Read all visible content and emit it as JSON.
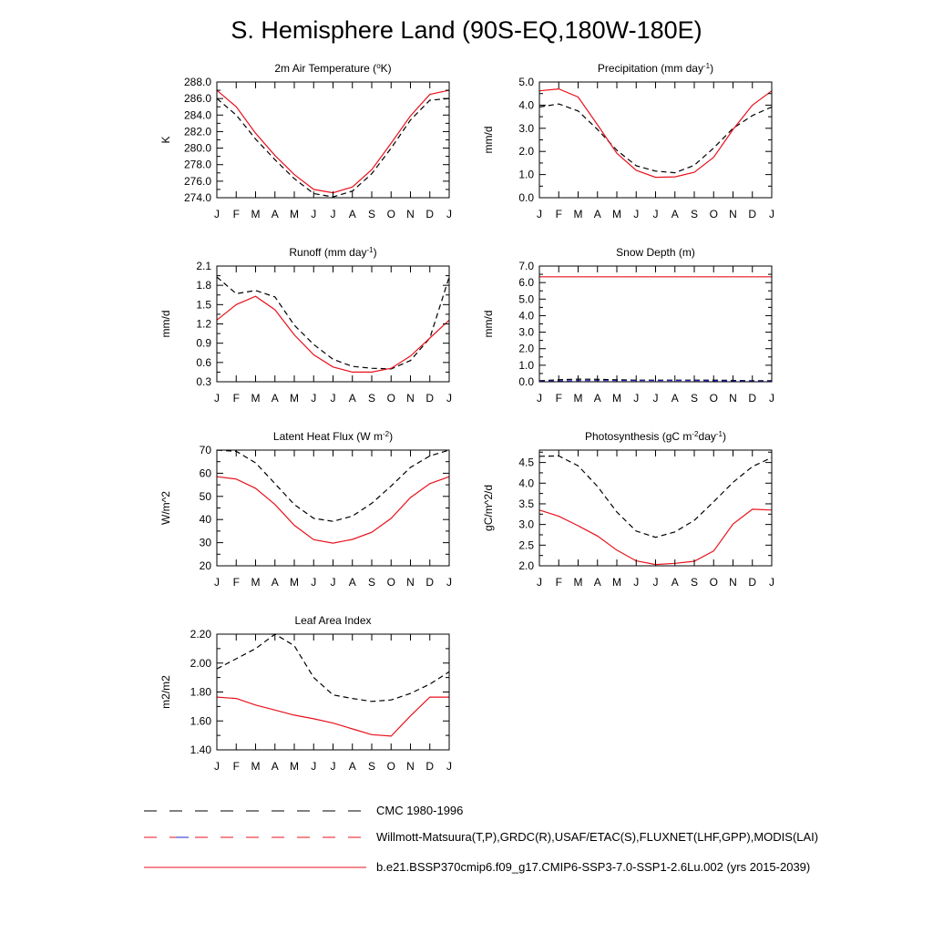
{
  "figure_title": "S. Hemisphere Land (90S-EQ,180W-180E)",
  "colors": {
    "model": "#e8111c",
    "obs": "#000000",
    "obs_alt": "#2222cc"
  },
  "legend": {
    "cmc": "CMC 1980-1996",
    "obs": "Willmott-Matsuura(T,P),GRDC(R),USAF/ETAC(S),FLUXNET(LHF,GPP),MODIS(LAI)",
    "model": "b.e21.BSSP370cmip6.f09_g17.CMIP6-SSP3-7.0-SSP1-2.6Lu.002 (yrs 2015-2039)"
  },
  "chart_data": [
    {
      "type": "line",
      "title": "2m Air Temperature (°K)",
      "title_html": "2m Air Temperature (<tspan baseline-shift=\"super\" font-size=\"8\">o</tspan>K)",
      "ylabel": "K",
      "months": [
        "J",
        "F",
        "M",
        "A",
        "M",
        "J",
        "J",
        "A",
        "S",
        "O",
        "N",
        "D",
        "J"
      ],
      "ylim": [
        274.0,
        288.0
      ],
      "yticks": [
        "274.0",
        "276.0",
        "278.0",
        "280.0",
        "282.0",
        "284.0",
        "286.0",
        "288.0"
      ],
      "ytick_values": [
        274,
        276,
        278,
        280,
        282,
        284,
        286,
        288
      ],
      "series": [
        {
          "key": "obs",
          "values": [
            286.0,
            284.0,
            281.1,
            278.6,
            276.3,
            274.5,
            274.1,
            274.8,
            276.9,
            280.0,
            283.4,
            285.8,
            286.0
          ]
        },
        {
          "key": "model",
          "values": [
            287.0,
            285.0,
            281.8,
            279.1,
            276.8,
            275.0,
            274.6,
            275.3,
            277.4,
            280.6,
            283.9,
            286.5,
            287.0
          ]
        }
      ]
    },
    {
      "type": "line",
      "title": "Precipitation (mm day-1)",
      "title_html": "Precipitation (mm day<tspan baseline-shift=\"super\" font-size=\"8\">-1</tspan>)",
      "ylabel": "mm/d",
      "months": [
        "J",
        "F",
        "M",
        "A",
        "M",
        "J",
        "J",
        "A",
        "S",
        "O",
        "N",
        "D",
        "J"
      ],
      "ylim": [
        0.0,
        5.0
      ],
      "yticks": [
        "0.0",
        "1.0",
        "2.0",
        "3.0",
        "4.0",
        "5.0"
      ],
      "ytick_values": [
        0,
        1,
        2,
        3,
        4,
        5
      ],
      "series": [
        {
          "key": "obs",
          "values": [
            3.92,
            4.05,
            3.75,
            2.95,
            2.05,
            1.38,
            1.15,
            1.08,
            1.4,
            2.15,
            3.0,
            3.55,
            3.92
          ]
        },
        {
          "key": "model",
          "values": [
            4.62,
            4.7,
            4.35,
            3.15,
            1.92,
            1.18,
            0.88,
            0.9,
            1.1,
            1.75,
            2.95,
            4.0,
            4.62
          ]
        }
      ]
    },
    {
      "type": "line",
      "title": "Runoff (mm day-1)",
      "title_html": "Runoff (mm day<tspan baseline-shift=\"super\" font-size=\"8\">-1</tspan>)",
      "ylabel": "mm/d",
      "months": [
        "J",
        "F",
        "M",
        "A",
        "M",
        "J",
        "J",
        "A",
        "S",
        "O",
        "N",
        "D",
        "J"
      ],
      "ylim": [
        0.3,
        2.1
      ],
      "yticks": [
        "0.3",
        "0.6",
        "0.9",
        "1.2",
        "1.5",
        "1.8",
        "2.1"
      ],
      "ytick_values": [
        0.3,
        0.6,
        0.9,
        1.2,
        1.5,
        1.8,
        2.1
      ],
      "series": [
        {
          "key": "obs",
          "values": [
            1.93,
            1.67,
            1.72,
            1.62,
            1.18,
            0.88,
            0.65,
            0.54,
            0.51,
            0.5,
            0.63,
            0.98,
            1.93
          ]
        },
        {
          "key": "model",
          "values": [
            1.26,
            1.5,
            1.63,
            1.42,
            1.03,
            0.72,
            0.53,
            0.45,
            0.45,
            0.51,
            0.7,
            0.98,
            1.26
          ]
        }
      ]
    },
    {
      "type": "line",
      "title": "Snow Depth (m)",
      "title_html": "Snow Depth (m)",
      "ylabel": "mm/d",
      "months": [
        "J",
        "F",
        "M",
        "A",
        "M",
        "J",
        "J",
        "A",
        "S",
        "O",
        "N",
        "D",
        "J"
      ],
      "ylim": [
        0.0,
        7.0
      ],
      "yticks": [
        "0.0",
        "1.0",
        "2.0",
        "3.0",
        "4.0",
        "5.0",
        "6.0",
        "7.0"
      ],
      "ytick_values": [
        0,
        1,
        2,
        3,
        4,
        5,
        6,
        7
      ],
      "series": [
        {
          "key": "obs",
          "values": [
            0.06,
            0.12,
            0.16,
            0.15,
            0.12,
            0.1,
            0.1,
            0.1,
            0.1,
            0.1,
            0.08,
            0.06,
            0.06
          ]
        },
        {
          "key": "obs_alt",
          "values": [
            0.03,
            0.05,
            0.07,
            0.07,
            0.07,
            0.07,
            0.07,
            0.07,
            0.07,
            0.06,
            0.05,
            0.04,
            0.03
          ]
        },
        {
          "key": "model",
          "values": [
            6.35,
            6.35,
            6.35,
            6.35,
            6.35,
            6.35,
            6.35,
            6.35,
            6.35,
            6.35,
            6.35,
            6.35,
            6.35
          ]
        }
      ]
    },
    {
      "type": "line",
      "title": "Latent Heat Flux (W m-2)",
      "title_html": "Latent Heat Flux (W m<tspan baseline-shift=\"super\" font-size=\"8\">-2</tspan>)",
      "ylabel": "W/m^2",
      "months": [
        "J",
        "F",
        "M",
        "A",
        "M",
        "J",
        "J",
        "A",
        "S",
        "O",
        "N",
        "D",
        "J"
      ],
      "ylim": [
        20,
        70
      ],
      "yticks": [
        "20",
        "30",
        "40",
        "50",
        "60",
        "70"
      ],
      "ytick_values": [
        20,
        30,
        40,
        50,
        60,
        70
      ],
      "series": [
        {
          "key": "obs",
          "values": [
            70.0,
            69.5,
            64.5,
            55.5,
            46.5,
            40.5,
            39.2,
            41.5,
            47.0,
            54.5,
            62.5,
            67.5,
            70.0
          ]
        },
        {
          "key": "model",
          "values": [
            58.5,
            57.5,
            53.5,
            46.5,
            37.5,
            31.3,
            29.8,
            31.4,
            34.5,
            40.5,
            49.5,
            55.5,
            58.5
          ]
        }
      ]
    },
    {
      "type": "line",
      "title": "Photosynthesis (gC m-2day-1)",
      "title_html": "Photosynthesis (gC m<tspan baseline-shift=\"super\" font-size=\"8\">-2</tspan>day<tspan baseline-shift=\"super\" font-size=\"8\">-1</tspan>)",
      "ylabel": "gC/m^2/d",
      "months": [
        "J",
        "F",
        "M",
        "A",
        "M",
        "J",
        "J",
        "A",
        "S",
        "O",
        "N",
        "D",
        "J"
      ],
      "ylim": [
        2.0,
        4.8
      ],
      "yticks": [
        "2.0",
        "2.5",
        "3.0",
        "3.5",
        "4.0",
        "4.5"
      ],
      "ytick_values": [
        2.0,
        2.5,
        3.0,
        3.5,
        4.0,
        4.5
      ],
      "series": [
        {
          "key": "obs",
          "values": [
            4.65,
            4.66,
            4.42,
            3.92,
            3.3,
            2.84,
            2.69,
            2.82,
            3.1,
            3.55,
            4.02,
            4.4,
            4.62
          ]
        },
        {
          "key": "model",
          "values": [
            3.35,
            3.2,
            2.97,
            2.72,
            2.38,
            2.12,
            2.03,
            2.06,
            2.11,
            2.36,
            3.01,
            3.37,
            3.35
          ]
        }
      ]
    },
    {
      "type": "line",
      "title": "Leaf Area Index",
      "title_html": "Leaf Area Index",
      "ylabel": "m2/m2",
      "months": [
        "J",
        "F",
        "M",
        "A",
        "M",
        "J",
        "J",
        "A",
        "S",
        "O",
        "N",
        "D",
        "J"
      ],
      "ylim": [
        1.4,
        2.2
      ],
      "yticks": [
        "1.40",
        "1.60",
        "1.80",
        "2.00",
        "2.20"
      ],
      "ytick_values": [
        1.4,
        1.6,
        1.8,
        2.0,
        2.2
      ],
      "series": [
        {
          "key": "obs",
          "values": [
            1.96,
            2.03,
            2.1,
            2.2,
            2.12,
            1.9,
            1.78,
            1.755,
            1.735,
            1.745,
            1.79,
            1.855,
            1.94
          ]
        },
        {
          "key": "model",
          "values": [
            1.765,
            1.755,
            1.71,
            1.675,
            1.64,
            1.615,
            1.585,
            1.545,
            1.505,
            1.495,
            1.635,
            1.765,
            1.765
          ]
        }
      ]
    }
  ]
}
